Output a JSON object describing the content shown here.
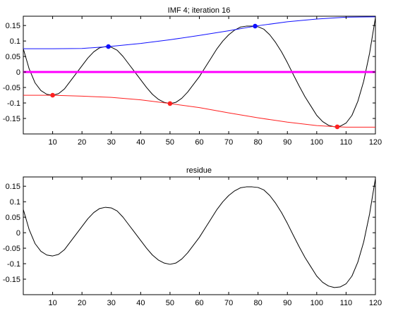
{
  "chart_data": [
    {
      "type": "line",
      "title": "IMF 4;   iteration 16",
      "xlim": [
        0,
        120
      ],
      "ylim": [
        -0.2,
        0.18
      ],
      "xticks": [
        10,
        20,
        30,
        40,
        50,
        60,
        70,
        80,
        90,
        100,
        110,
        120
      ],
      "xtick_labels": [
        "10",
        "20",
        "30",
        "40",
        "50",
        "60",
        "70",
        "80",
        "90",
        "100",
        "110",
        "120"
      ],
      "yticks": [
        0.15,
        0.1,
        0.05,
        0,
        -0.05,
        -0.1,
        -0.15
      ],
      "ytick_labels": [
        "0.15",
        "0.1",
        "0.05",
        "0",
        "-0.05",
        "-0.1",
        "-0.15"
      ],
      "grid": false,
      "series": [
        {
          "color": "#000000",
          "style": "line",
          "x": [
            0,
            2,
            4,
            6,
            8,
            10,
            12,
            14,
            16,
            18,
            20,
            22,
            24,
            26,
            28,
            30,
            32,
            34,
            36,
            38,
            40,
            42,
            44,
            46,
            48,
            50,
            52,
            54,
            56,
            58,
            60,
            62,
            64,
            66,
            68,
            70,
            72,
            74,
            76,
            78,
            80,
            82,
            84,
            86,
            88,
            90,
            92,
            94,
            96,
            98,
            100,
            102,
            104,
            106,
            108,
            110,
            112,
            114,
            116,
            118,
            120
          ],
          "values": [
            0.075,
            0.01,
            -0.035,
            -0.06,
            -0.072,
            -0.075,
            -0.07,
            -0.055,
            -0.03,
            -0.005,
            0.02,
            0.045,
            0.065,
            0.078,
            0.082,
            0.08,
            0.07,
            0.05,
            0.025,
            0.0,
            -0.025,
            -0.05,
            -0.072,
            -0.088,
            -0.098,
            -0.102,
            -0.098,
            -0.085,
            -0.065,
            -0.04,
            -0.015,
            0.015,
            0.045,
            0.075,
            0.1,
            0.12,
            0.135,
            0.145,
            0.148,
            0.148,
            0.146,
            0.138,
            0.12,
            0.095,
            0.065,
            0.03,
            -0.008,
            -0.045,
            -0.08,
            -0.11,
            -0.14,
            -0.16,
            -0.172,
            -0.177,
            -0.175,
            -0.165,
            -0.14,
            -0.095,
            -0.03,
            0.06,
            0.175
          ]
        },
        {
          "color": "#1010ff",
          "style": "line",
          "x": [
            0,
            10,
            20,
            29,
            40,
            50,
            60,
            70,
            79,
            90,
            100,
            110,
            120
          ],
          "values": [
            0.075,
            0.075,
            0.076,
            0.082,
            0.092,
            0.104,
            0.118,
            0.133,
            0.148,
            0.162,
            0.171,
            0.177,
            0.178
          ]
        },
        {
          "color": "#ff2020",
          "style": "line",
          "x": [
            0,
            10,
            20,
            30,
            40,
            50,
            60,
            70,
            80,
            90,
            100,
            107,
            110,
            120
          ],
          "values": [
            -0.075,
            -0.075,
            -0.078,
            -0.082,
            -0.09,
            -0.102,
            -0.115,
            -0.132,
            -0.148,
            -0.162,
            -0.173,
            -0.177,
            -0.178,
            -0.178
          ]
        },
        {
          "color": "#ff00ff",
          "style": "line",
          "x": [
            0,
            120
          ],
          "values": [
            0,
            0
          ]
        },
        {
          "color": "#1010ff",
          "style": "markers",
          "x": [
            29,
            79
          ],
          "values": [
            0.082,
            0.148
          ]
        },
        {
          "color": "#ff2020",
          "style": "markers",
          "x": [
            10,
            50,
            107
          ],
          "values": [
            -0.075,
            -0.102,
            -0.177
          ]
        }
      ]
    },
    {
      "type": "line",
      "title": "residue",
      "xlim": [
        0,
        120
      ],
      "ylim": [
        -0.2,
        0.18
      ],
      "xticks": [
        10,
        20,
        30,
        40,
        50,
        60,
        70,
        80,
        90,
        100,
        110,
        120
      ],
      "xtick_labels": [
        "10",
        "20",
        "30",
        "40",
        "50",
        "60",
        "70",
        "80",
        "90",
        "100",
        "110",
        "120"
      ],
      "yticks": [
        0.15,
        0.1,
        0.05,
        0,
        -0.05,
        -0.1,
        -0.15
      ],
      "ytick_labels": [
        "0.15",
        "0.1",
        "0.05",
        "0",
        "-0.05",
        "-0.1",
        "-0.15"
      ],
      "grid": false,
      "series": [
        {
          "color": "#000000",
          "style": "line",
          "x": [
            0,
            2,
            4,
            6,
            8,
            10,
            12,
            14,
            16,
            18,
            20,
            22,
            24,
            26,
            28,
            30,
            32,
            34,
            36,
            38,
            40,
            42,
            44,
            46,
            48,
            50,
            52,
            54,
            56,
            58,
            60,
            62,
            64,
            66,
            68,
            70,
            72,
            74,
            76,
            78,
            80,
            82,
            84,
            86,
            88,
            90,
            92,
            94,
            96,
            98,
            100,
            102,
            104,
            106,
            108,
            110,
            112,
            114,
            116,
            118,
            120
          ],
          "values": [
            0.075,
            0.01,
            -0.035,
            -0.06,
            -0.072,
            -0.075,
            -0.07,
            -0.055,
            -0.03,
            -0.005,
            0.02,
            0.045,
            0.065,
            0.078,
            0.082,
            0.08,
            0.07,
            0.05,
            0.025,
            0.0,
            -0.025,
            -0.05,
            -0.072,
            -0.088,
            -0.098,
            -0.102,
            -0.098,
            -0.085,
            -0.065,
            -0.04,
            -0.015,
            0.015,
            0.045,
            0.075,
            0.1,
            0.12,
            0.135,
            0.145,
            0.148,
            0.148,
            0.146,
            0.138,
            0.12,
            0.095,
            0.065,
            0.03,
            -0.008,
            -0.045,
            -0.08,
            -0.11,
            -0.14,
            -0.16,
            -0.172,
            -0.177,
            -0.175,
            -0.165,
            -0.14,
            -0.095,
            -0.03,
            0.06,
            0.175
          ]
        }
      ]
    }
  ]
}
